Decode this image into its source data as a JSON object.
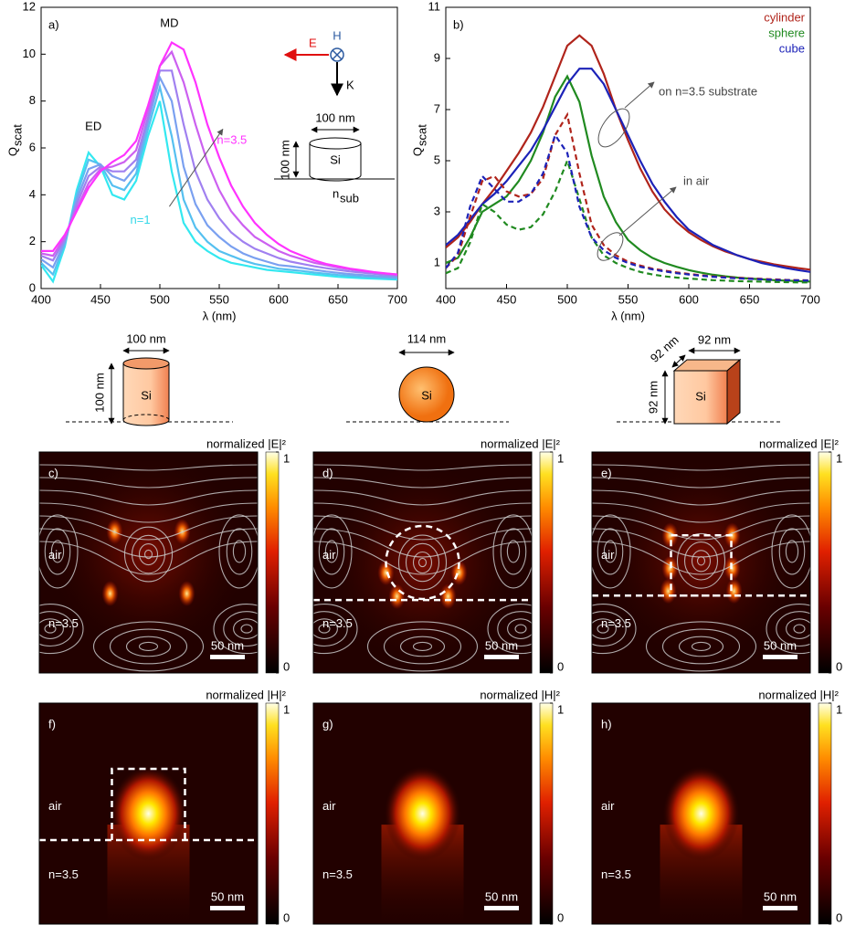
{
  "chart_data": [
    {
      "type": "line",
      "panel_label": "a)",
      "x_label": "λ (nm)",
      "y_label": "Q",
      "y_label_sub": "scat",
      "xlim": [
        400,
        700
      ],
      "xticks": [
        400,
        450,
        500,
        550,
        600,
        650,
        700
      ],
      "ylim": [
        0,
        12
      ],
      "yticks": [
        0,
        2,
        4,
        6,
        8,
        10,
        12
      ],
      "x": [
        400,
        410,
        420,
        430,
        440,
        450,
        460,
        470,
        480,
        490,
        500,
        510,
        520,
        530,
        540,
        550,
        560,
        570,
        580,
        590,
        600,
        610,
        620,
        630,
        640,
        650,
        660,
        670,
        680,
        690,
        700
      ],
      "series": [
        {
          "color": "#33e8f0",
          "line_style": "solid",
          "values": [
            1.0,
            0.3,
            1.8,
            4.2,
            5.8,
            5.2,
            4.0,
            3.8,
            4.6,
            6.5,
            8.0,
            5.0,
            2.8,
            2.0,
            1.6,
            1.3,
            1.1,
            1.0,
            0.9,
            0.8,
            0.75,
            0.7,
            0.65,
            0.6,
            0.55,
            0.5,
            0.47,
            0.44,
            0.42,
            0.4,
            0.38
          ]
        },
        {
          "color": "#55c0f0",
          "line_style": "solid",
          "values": [
            1.1,
            0.6,
            1.9,
            4.0,
            5.5,
            5.3,
            4.4,
            4.2,
            4.9,
            6.8,
            8.6,
            6.5,
            3.8,
            2.6,
            2.0,
            1.6,
            1.4,
            1.2,
            1.05,
            0.95,
            0.85,
            0.8,
            0.75,
            0.68,
            0.63,
            0.58,
            0.54,
            0.5,
            0.48,
            0.45,
            0.43
          ]
        },
        {
          "color": "#7aa0f0",
          "line_style": "solid",
          "values": [
            1.25,
            0.9,
            2.0,
            3.8,
            5.1,
            5.3,
            4.8,
            4.6,
            5.2,
            7.1,
            9.0,
            8.0,
            5.2,
            3.6,
            2.7,
            2.2,
            1.8,
            1.5,
            1.3,
            1.15,
            1.0,
            0.95,
            0.88,
            0.8,
            0.73,
            0.67,
            0.62,
            0.58,
            0.54,
            0.51,
            0.48
          ]
        },
        {
          "color": "#a080f0",
          "line_style": "solid",
          "values": [
            1.4,
            1.2,
            2.1,
            3.6,
            4.8,
            5.2,
            5.0,
            5.0,
            5.5,
            7.3,
            9.3,
            9.3,
            7.0,
            5.0,
            3.8,
            3.0,
            2.4,
            2.0,
            1.7,
            1.5,
            1.3,
            1.15,
            1.05,
            0.95,
            0.87,
            0.8,
            0.73,
            0.68,
            0.63,
            0.59,
            0.55
          ]
        },
        {
          "color": "#cc60f0",
          "line_style": "solid",
          "values": [
            1.5,
            1.4,
            2.2,
            3.4,
            4.5,
            5.1,
            5.2,
            5.4,
            5.9,
            7.6,
            9.5,
            10.1,
            8.8,
            7.0,
            5.4,
            4.2,
            3.3,
            2.7,
            2.2,
            1.9,
            1.6,
            1.4,
            1.25,
            1.1,
            1.0,
            0.9,
            0.82,
            0.75,
            0.69,
            0.64,
            0.6
          ]
        },
        {
          "color": "#ff33ff",
          "line_style": "solid",
          "values": [
            1.6,
            1.6,
            2.3,
            3.3,
            4.3,
            5.0,
            5.4,
            5.7,
            6.3,
            7.8,
            9.5,
            10.5,
            10.2,
            8.8,
            7.0,
            5.6,
            4.4,
            3.5,
            2.8,
            2.3,
            1.9,
            1.6,
            1.4,
            1.2,
            1.05,
            0.95,
            0.85,
            0.78,
            0.7,
            0.65,
            0.6
          ]
        }
      ],
      "annotations": {
        "ed": "ED",
        "md": "MD",
        "n_high": "n=3.5",
        "n_low": "n=1"
      },
      "inset": {
        "e": "E",
        "h": "H",
        "k": "K",
        "width": "100 nm",
        "height": "100 nm",
        "material": "Si",
        "substrate": "n",
        "substrate_sub": "sub"
      }
    },
    {
      "type": "line",
      "panel_label": "b)",
      "x_label": "λ (nm)",
      "y_label": "Q",
      "y_label_sub": "scat",
      "xlim": [
        400,
        700
      ],
      "xticks": [
        400,
        450,
        500,
        550,
        600,
        650,
        700
      ],
      "ylim": [
        0,
        11
      ],
      "yticks": [
        1,
        3,
        5,
        7,
        9,
        11
      ],
      "x": [
        400,
        410,
        420,
        430,
        440,
        450,
        460,
        470,
        480,
        490,
        500,
        510,
        520,
        530,
        540,
        550,
        560,
        570,
        580,
        590,
        600,
        610,
        620,
        630,
        640,
        650,
        660,
        670,
        680,
        690,
        700
      ],
      "series": [
        {
          "name": "cylinder",
          "color": "#b0241b",
          "line_style": "solid",
          "values": [
            1.6,
            2.0,
            2.6,
            3.3,
            3.9,
            4.6,
            5.3,
            6.1,
            7.1,
            8.3,
            9.5,
            9.9,
            9.5,
            8.4,
            7.0,
            5.8,
            4.7,
            3.8,
            3.1,
            2.6,
            2.2,
            1.9,
            1.65,
            1.45,
            1.3,
            1.15,
            1.05,
            0.95,
            0.87,
            0.8,
            0.74
          ]
        },
        {
          "name": "sphere",
          "color": "#208a20",
          "line_style": "solid",
          "values": [
            1.0,
            1.2,
            2.0,
            3.0,
            3.3,
            3.6,
            4.2,
            5.0,
            6.1,
            7.5,
            8.3,
            7.3,
            5.2,
            3.6,
            2.6,
            1.9,
            1.5,
            1.2,
            1.0,
            0.85,
            0.72,
            0.62,
            0.54,
            0.48,
            0.43,
            0.39,
            0.36,
            0.33,
            0.31,
            0.29,
            0.27
          ]
        },
        {
          "name": "cube",
          "color": "#1c22b8",
          "line_style": "solid",
          "values": [
            1.7,
            2.1,
            2.7,
            3.3,
            3.7,
            4.2,
            4.8,
            5.4,
            6.2,
            7.1,
            8.0,
            8.6,
            8.6,
            8.0,
            7.0,
            6.0,
            5.0,
            4.1,
            3.4,
            2.8,
            2.3,
            2.0,
            1.7,
            1.5,
            1.3,
            1.15,
            1.0,
            0.9,
            0.8,
            0.72,
            0.65
          ]
        },
        {
          "color": "#b0241b",
          "line_style": "dashed",
          "values": [
            0.8,
            1.3,
            2.8,
            4.2,
            4.4,
            3.8,
            3.6,
            3.7,
            4.3,
            6.0,
            6.8,
            4.5,
            2.5,
            1.7,
            1.3,
            1.05,
            0.9,
            0.78,
            0.7,
            0.63,
            0.57,
            0.52,
            0.48,
            0.45,
            0.42,
            0.4,
            0.38,
            0.36,
            0.34,
            0.33,
            0.32
          ]
        },
        {
          "color": "#208a20",
          "line_style": "dashed",
          "values": [
            0.6,
            0.8,
            1.8,
            3.3,
            3.0,
            2.5,
            2.3,
            2.4,
            2.9,
            3.8,
            5.0,
            3.5,
            2.0,
            1.3,
            1.0,
            0.8,
            0.65,
            0.55,
            0.48,
            0.43,
            0.39,
            0.36,
            0.33,
            0.31,
            0.29,
            0.28,
            0.27,
            0.26,
            0.25,
            0.24,
            0.24
          ]
        },
        {
          "color": "#1c22b8",
          "line_style": "dashed",
          "values": [
            0.8,
            1.4,
            3.2,
            4.4,
            3.9,
            3.4,
            3.4,
            3.7,
            4.5,
            6.0,
            5.3,
            3.2,
            2.0,
            1.5,
            1.2,
            1.0,
            0.85,
            0.75,
            0.67,
            0.6,
            0.55,
            0.5,
            0.46,
            0.43,
            0.4,
            0.38,
            0.36,
            0.34,
            0.33,
            0.32,
            0.31
          ]
        }
      ],
      "legend": "top-right",
      "annotations": {
        "substrate": "on n=3.5 substrate",
        "air": "in air"
      }
    }
  ],
  "schematics": [
    {
      "shape": "cylinder",
      "size_top": "100 nm",
      "size_side": "100 nm",
      "material": "Si"
    },
    {
      "shape": "sphere",
      "size_top": "114 nm",
      "material": "Si"
    },
    {
      "shape": "cube",
      "size_top": "92 nm",
      "size_depth": "92 nm",
      "size_side": "92 nm",
      "material": "Si"
    }
  ],
  "field_maps": [
    {
      "label": "c)",
      "field": "E",
      "shape": "cylinder",
      "colorbar": {
        "label": "normalized |E|²",
        "ticks": [
          0,
          1
        ]
      },
      "upper": "air",
      "lower": "n=3.5",
      "scale_bar": "50 nm"
    },
    {
      "label": "d)",
      "field": "E",
      "shape": "sphere",
      "colorbar": {
        "label": "normalized |E|²",
        "ticks": [
          0,
          1
        ]
      },
      "upper": "air",
      "lower": "n=3.5",
      "scale_bar": "50 nm"
    },
    {
      "label": "e)",
      "field": "E",
      "shape": "cube",
      "colorbar": {
        "label": "normalized |E|²",
        "ticks": [
          0,
          1
        ]
      },
      "upper": "air",
      "lower": "n=3.5",
      "scale_bar": "50 nm"
    },
    {
      "label": "f)",
      "field": "H",
      "shape": "cylinder",
      "colorbar": {
        "label": "normalized |H|²",
        "ticks": [
          0,
          1
        ]
      },
      "upper": "air",
      "lower": "n=3.5",
      "scale_bar": "50 nm"
    },
    {
      "label": "g)",
      "field": "H",
      "shape": "sphere",
      "colorbar": {
        "label": "normalized |H|²",
        "ticks": [
          0,
          1
        ]
      },
      "upper": "air",
      "lower": "n=3.5",
      "scale_bar": "50 nm"
    },
    {
      "label": "h)",
      "field": "H",
      "shape": "cube",
      "colorbar": {
        "label": "normalized |H|²",
        "ticks": [
          0,
          1
        ]
      },
      "upper": "air",
      "lower": "n=3.5",
      "scale_bar": "50 nm"
    }
  ]
}
